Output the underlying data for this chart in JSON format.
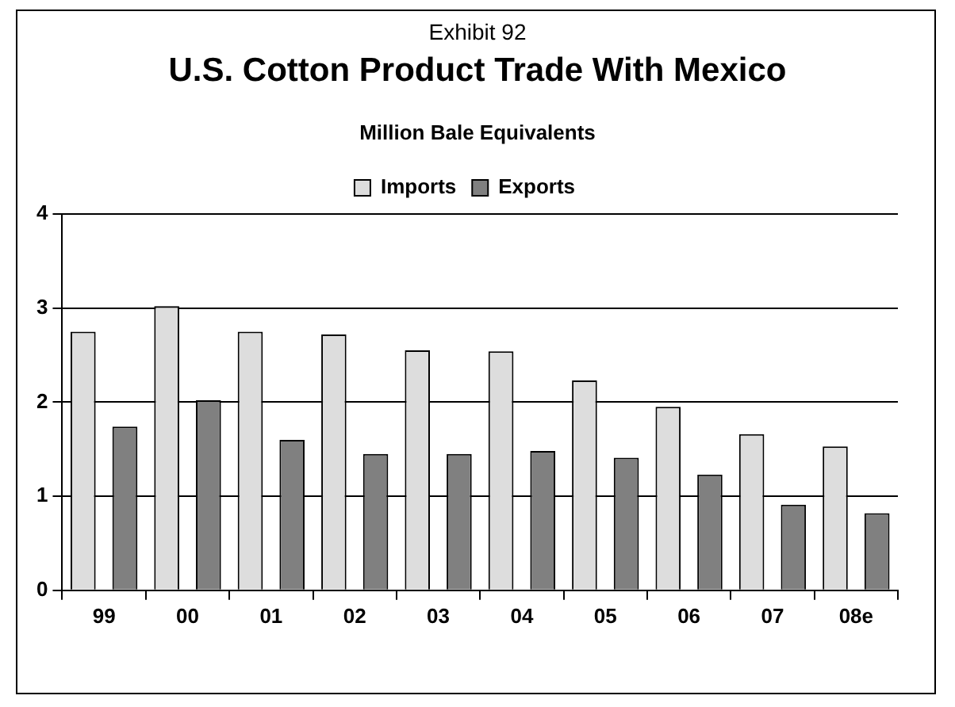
{
  "chart_data": {
    "type": "bar",
    "title": "U.S. Cotton Product Trade With Mexico",
    "subtitle": "Million Bale Equivalents",
    "annotations": [
      "Exhibit 92"
    ],
    "categories": [
      "99",
      "00",
      "01",
      "02",
      "03",
      "04",
      "05",
      "06",
      "07",
      "08e"
    ],
    "series": [
      {
        "name": "Imports",
        "color": "#dddddd",
        "values": [
          2.75,
          3.02,
          2.75,
          2.72,
          2.55,
          2.54,
          2.23,
          1.95,
          1.66,
          1.53
        ]
      },
      {
        "name": "Exports",
        "color": "#808080",
        "values": [
          1.74,
          2.02,
          1.6,
          1.45,
          1.45,
          1.48,
          1.41,
          1.23,
          0.91,
          0.82
        ]
      }
    ],
    "ylim": [
      0,
      4
    ],
    "yticks": [
      0,
      1,
      2,
      3,
      4
    ],
    "grid": "y",
    "legend": "top"
  }
}
